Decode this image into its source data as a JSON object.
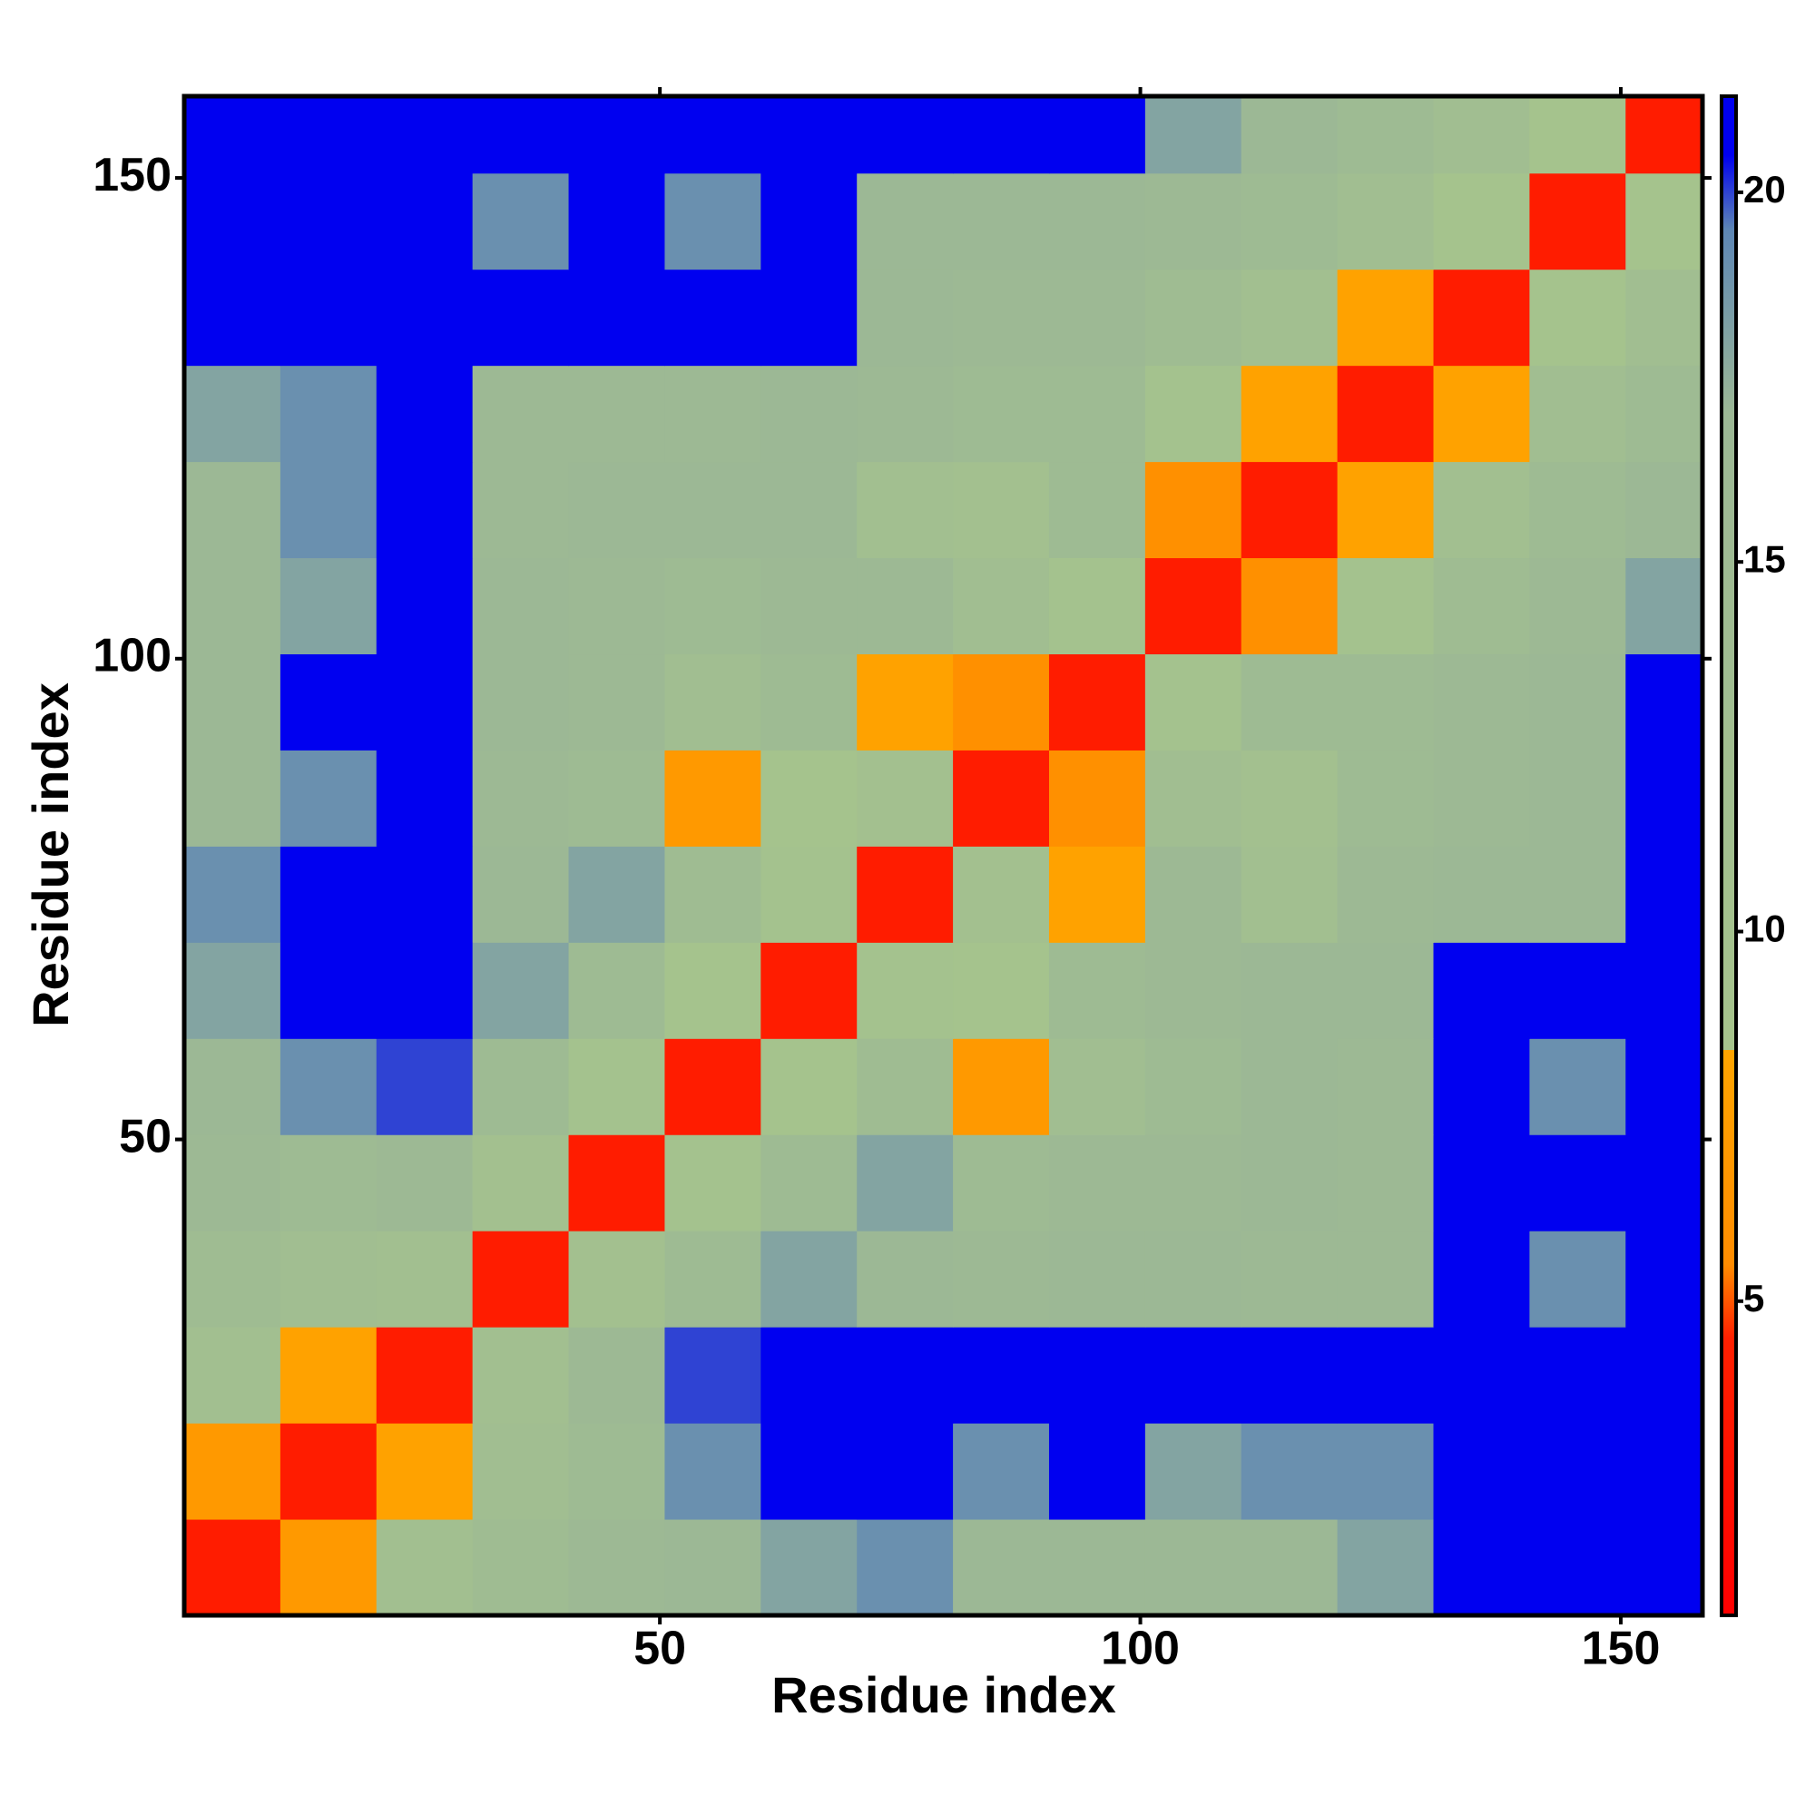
{
  "chart_data": {
    "type": "heatmap",
    "x_label": "Residue index",
    "y_label": "Residue index",
    "xbins": [
      0.5,
      10.5,
      20.5,
      30.5,
      40.5,
      50.5,
      60.5,
      70.5,
      80.5,
      90.5,
      100.5,
      110.5,
      120.5,
      130.5,
      140.5,
      150.5,
      158.5
    ],
    "ybins": [
      0.5,
      10.5,
      20.5,
      30.5,
      40.5,
      50.5,
      60.5,
      70.5,
      80.5,
      90.5,
      100.5,
      110.5,
      120.5,
      130.5,
      140.5,
      150.5,
      158.5
    ],
    "z": [
      [
        4,
        7,
        12,
        14,
        16,
        17,
        18,
        19,
        17,
        17,
        17,
        17,
        18,
        21,
        21,
        21
      ],
      [
        7,
        4,
        8,
        13,
        15,
        19,
        21,
        21,
        19,
        21,
        18,
        19,
        19,
        21,
        21,
        21
      ],
      [
        12,
        8,
        4,
        12,
        16,
        20,
        21,
        21,
        21,
        21,
        21,
        21,
        21,
        21,
        21,
        21
      ],
      [
        14,
        13,
        12,
        4,
        11,
        15,
        18,
        17,
        16,
        17,
        17,
        16,
        16,
        21,
        19,
        21
      ],
      [
        16,
        15,
        16,
        11,
        4,
        10,
        15,
        18,
        15,
        16,
        16,
        17,
        16,
        21,
        21,
        21
      ],
      [
        17,
        19,
        20,
        15,
        10,
        4,
        9,
        14,
        7,
        13,
        15,
        17,
        16,
        21,
        19,
        21
      ],
      [
        18,
        21,
        21,
        18,
        15,
        9,
        4,
        10,
        9,
        15,
        16,
        17,
        17,
        21,
        21,
        21
      ],
      [
        19,
        21,
        21,
        17,
        18,
        14,
        10,
        4,
        11,
        8,
        16,
        12,
        16,
        17,
        17,
        21
      ],
      [
        17,
        19,
        21,
        16,
        15,
        7,
        9,
        11,
        4,
        6,
        13,
        11,
        15,
        16,
        17,
        21
      ],
      [
        17,
        21,
        21,
        17,
        16,
        13,
        15,
        8,
        6,
        4,
        10,
        15,
        15,
        16,
        17,
        21
      ],
      [
        17,
        18,
        21,
        17,
        16,
        15,
        16,
        16,
        13,
        10,
        4,
        6,
        10,
        14,
        16,
        18
      ],
      [
        17,
        19,
        21,
        16,
        17,
        17,
        17,
        12,
        11,
        15,
        6,
        4,
        8,
        12,
        15,
        17
      ],
      [
        18,
        19,
        21,
        16,
        16,
        16,
        17,
        16,
        15,
        15,
        10,
        8,
        4,
        8,
        13,
        15
      ],
      [
        21,
        21,
        21,
        21,
        21,
        21,
        21,
        17,
        16,
        16,
        14,
        12,
        8,
        4,
        9,
        13
      ],
      [
        21,
        21,
        21,
        19,
        21,
        19,
        21,
        17,
        17,
        17,
        16,
        15,
        13,
        9,
        4,
        9
      ],
      [
        21,
        21,
        21,
        21,
        21,
        21,
        21,
        21,
        21,
        21,
        18,
        17,
        15,
        13,
        9,
        4
      ]
    ],
    "xlim": [
      0.5,
      158.5
    ],
    "ylim": [
      0.5,
      158.5
    ],
    "xticks": [
      50,
      100,
      150
    ],
    "yticks": [
      50,
      100,
      150
    ],
    "colorbar_lim": [
      0.75,
      21.3
    ],
    "colorbar_ticks": [
      5,
      10,
      15,
      20
    ],
    "colorscale": [
      {
        "value": 0.75,
        "color": "#ff0000"
      },
      {
        "value": 4.5,
        "color": "#ff2000"
      },
      {
        "value": 5.5,
        "color": "#ff8c00"
      },
      {
        "value": 8.4,
        "color": "#ffa500"
      },
      {
        "value": 8.4,
        "color": "#a6c48c"
      },
      {
        "value": 17,
        "color": "#9cb895"
      },
      {
        "value": 19.5,
        "color": "#5d86b5"
      },
      {
        "value": 20.5,
        "color": "#0000f0"
      },
      {
        "value": 21.3,
        "color": "#0000f0"
      }
    ]
  }
}
